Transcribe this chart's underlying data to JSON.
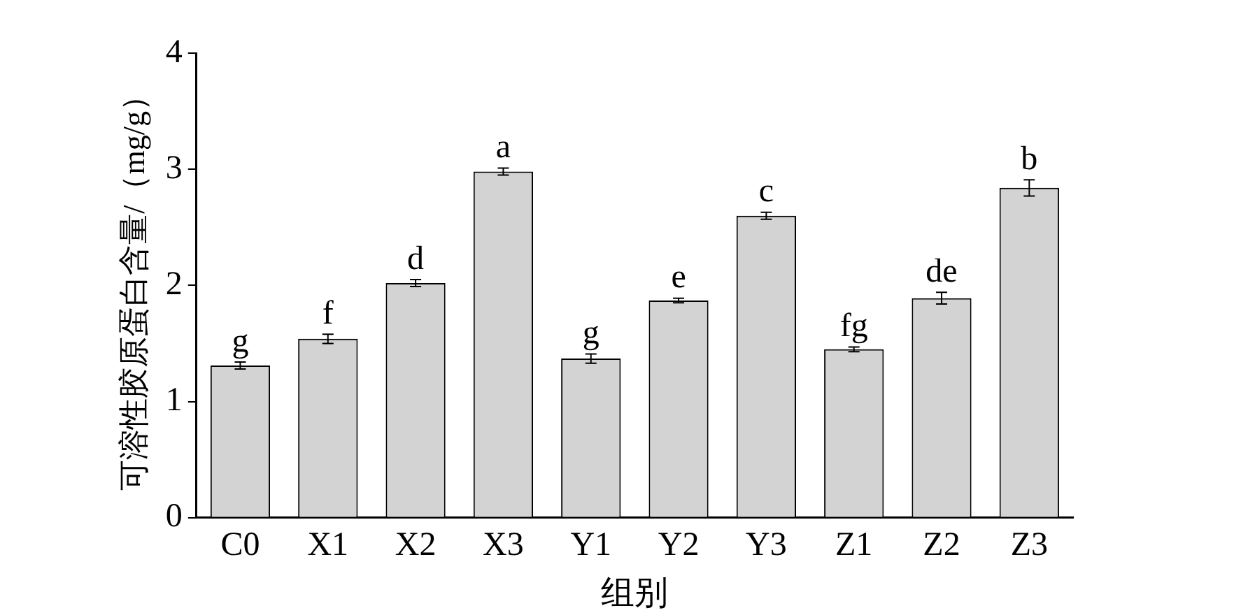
{
  "chart_data": {
    "type": "bar",
    "xlabel": "组别",
    "ylabel": "可溶性胶原蛋白含量/（mg/g）",
    "categories": [
      "C0",
      "X1",
      "X2",
      "X3",
      "Y1",
      "Y2",
      "Y3",
      "Z1",
      "Z2",
      "Z3"
    ],
    "values": [
      1.31,
      1.54,
      2.02,
      2.98,
      1.37,
      1.87,
      2.6,
      1.45,
      1.89,
      2.84
    ],
    "errors": [
      0.03,
      0.04,
      0.03,
      0.03,
      0.04,
      0.02,
      0.03,
      0.02,
      0.05,
      0.07
    ],
    "color": "#d3d3d3",
    "ylim": [
      0,
      4
    ],
    "yticks": [
      0,
      1,
      2,
      3,
      4
    ],
    "grid": false,
    "legend": false,
    "annotations": [
      {
        "text": "g",
        "x": "C0",
        "y": 1.34
      },
      {
        "text": "f",
        "x": "X1",
        "y": 1.58
      },
      {
        "text": "d",
        "x": "X2",
        "y": 2.05
      },
      {
        "text": "a",
        "x": "X3",
        "y": 3.01
      },
      {
        "text": "g",
        "x": "Y1",
        "y": 1.41
      },
      {
        "text": "e",
        "x": "Y2",
        "y": 1.89
      },
      {
        "text": "c",
        "x": "Y3",
        "y": 2.63
      },
      {
        "text": "fg",
        "x": "Z1",
        "y": 1.47
      },
      {
        "text": "de",
        "x": "Z2",
        "y": 1.94
      },
      {
        "text": "b",
        "x": "Z3",
        "y": 2.91
      }
    ]
  }
}
